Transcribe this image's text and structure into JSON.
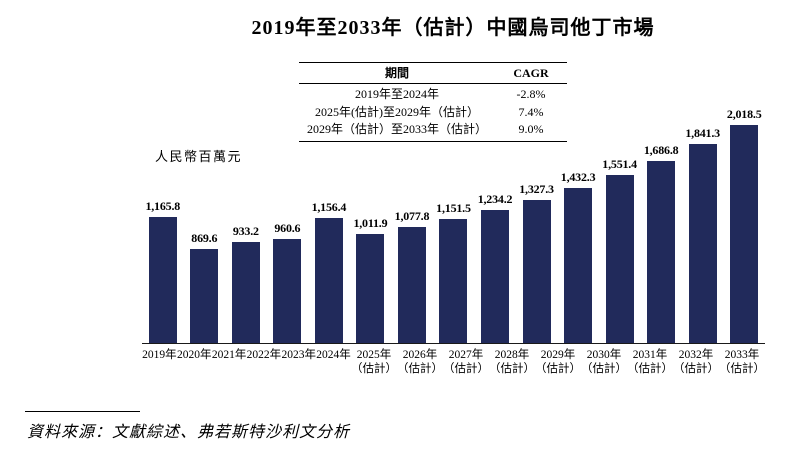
{
  "title": "2019年至2033年（估計）中國烏司他丁市場",
  "y_axis_label": "人民幣百萬元",
  "source": "資料來源：文獻綜述、弗若斯特沙利文分析",
  "colors": {
    "bar": "#212A5B",
    "axis": "#1a1a1a",
    "text": "#000000"
  },
  "cagr_table": {
    "headers": [
      "期間",
      "CAGR"
    ],
    "rows": [
      {
        "period": "2019年至2024年",
        "cagr": "-2.8%"
      },
      {
        "period": "2025年(估計)至2029年（估計）",
        "cagr": "7.4%"
      },
      {
        "period": "2029年（估計）至2033年（估計）",
        "cagr": "9.0%"
      }
    ]
  },
  "chart_data": {
    "type": "bar",
    "title": "2019年至2033年（估計）中國烏司他丁市場",
    "xlabel": "",
    "ylabel": "人民幣百萬元",
    "categories": [
      {
        "line1": "2019年",
        "line2": ""
      },
      {
        "line1": "2020年",
        "line2": ""
      },
      {
        "line1": "2021年",
        "line2": ""
      },
      {
        "line1": "2022年",
        "line2": ""
      },
      {
        "line1": "2023年",
        "line2": ""
      },
      {
        "line1": "2024年",
        "line2": ""
      },
      {
        "line1": "2025年",
        "line2": "（估計）"
      },
      {
        "line1": "2026年",
        "line2": "（估計）"
      },
      {
        "line1": "2027年",
        "line2": "（估計）"
      },
      {
        "line1": "2028年",
        "line2": "（估計）"
      },
      {
        "line1": "2029年",
        "line2": "（估計）"
      },
      {
        "line1": "2030年",
        "line2": "（估計）"
      },
      {
        "line1": "2031年",
        "line2": "（估計）"
      },
      {
        "line1": "2032年",
        "line2": "（估計）"
      },
      {
        "line1": "2033年",
        "line2": "（估計）"
      }
    ],
    "values": [
      1165.8,
      869.6,
      933.2,
      960.6,
      1156.4,
      1011.9,
      1077.8,
      1151.5,
      1234.2,
      1327.3,
      1432.3,
      1551.4,
      1686.8,
      1841.3,
      2018.5
    ],
    "value_labels": [
      "1,165.8",
      "869.6",
      "933.2",
      "960.6",
      "1,156.4",
      "1,011.9",
      "1,077.8",
      "1,151.5",
      "1,234.2",
      "1,327.3",
      "1,432.3",
      "1,551.4",
      "1,686.8",
      "1,841.3",
      "2,018.5"
    ],
    "ylim": [
      0,
      2100
    ],
    "grid": false,
    "legend_position": "none",
    "bar_color": "#212A5B"
  }
}
